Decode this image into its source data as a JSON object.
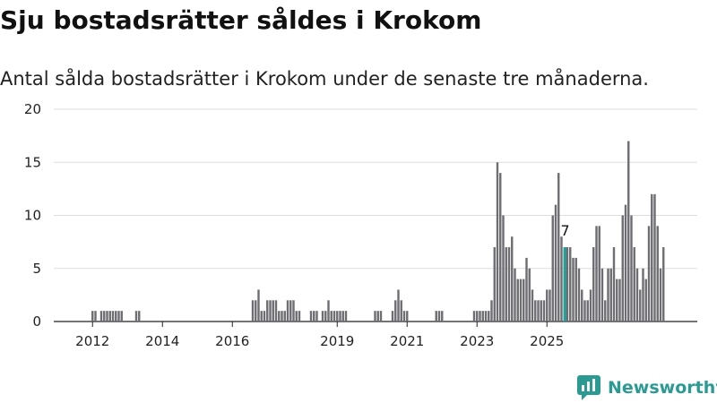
{
  "title": "Sju bostadsrätter såldes i Krokom",
  "subtitle": "Antal sålda bostadsrätter i Krokom under de senaste tre månaderna.",
  "brand": {
    "name": "Newsworthy",
    "icon": "newsworthy-logo-icon",
    "color": "#2a9a92"
  },
  "colors": {
    "bar": "#6d6d72",
    "highlight": "#21a197",
    "grid": "#dddddd"
  },
  "chart_data": {
    "type": "bar",
    "title": "",
    "xlabel": "",
    "ylabel": "",
    "grid": true,
    "ylim": [
      0,
      20
    ],
    "yticks": [
      "0",
      "5",
      "10",
      "15",
      "20"
    ],
    "xticks": [
      "2012",
      "2014",
      "2016",
      "2019",
      "2021",
      "2023",
      "2025"
    ],
    "xtick_dates": [
      "2012-01",
      "2014-01",
      "2016-01",
      "2019-01",
      "2021-01",
      "2023-01",
      "2025-01"
    ],
    "data_label": "7",
    "highlight": {
      "month": "2025-07",
      "value": 7
    },
    "start_month": "2011-10",
    "values": [
      0,
      0,
      0,
      1,
      1,
      0,
      1,
      1,
      1,
      1,
      1,
      1,
      1,
      1,
      0,
      0,
      0,
      0,
      1,
      1,
      0,
      0,
      0,
      0,
      0,
      0,
      0,
      0,
      0,
      0,
      0,
      0,
      0,
      0,
      0,
      0,
      0,
      0,
      0,
      0,
      0,
      0,
      0,
      0,
      0,
      0,
      0,
      0,
      0,
      0,
      0,
      0,
      0,
      0,
      0,
      0,
      0,
      0,
      2,
      2,
      3,
      1,
      1,
      2,
      2,
      2,
      2,
      1,
      1,
      1,
      2,
      2,
      2,
      1,
      1,
      0,
      0,
      0,
      1,
      1,
      1,
      0,
      1,
      1,
      2,
      1,
      1,
      1,
      1,
      1,
      1,
      0,
      0,
      0,
      0,
      0,
      0,
      0,
      0,
      0,
      1,
      1,
      1,
      0,
      0,
      0,
      1,
      2,
      3,
      2,
      1,
      1,
      0,
      0,
      0,
      0,
      0,
      0,
      0,
      0,
      0,
      1,
      1,
      1,
      0,
      0,
      0,
      0,
      0,
      0,
      0,
      0,
      0,
      0,
      1,
      1,
      1,
      1,
      1,
      1,
      2,
      7,
      15,
      14,
      10,
      7,
      7,
      8,
      5,
      4,
      4,
      4,
      6,
      5,
      3,
      2,
      2,
      2,
      2,
      3,
      3,
      10,
      11,
      14,
      8,
      7,
      7,
      7,
      6,
      6,
      5,
      3,
      2,
      2,
      3,
      7,
      9,
      9,
      5,
      2,
      5,
      5,
      7,
      4,
      4,
      10,
      11,
      17,
      10,
      7,
      5,
      3,
      5,
      4,
      9,
      12,
      12,
      9,
      5,
      7
    ]
  }
}
